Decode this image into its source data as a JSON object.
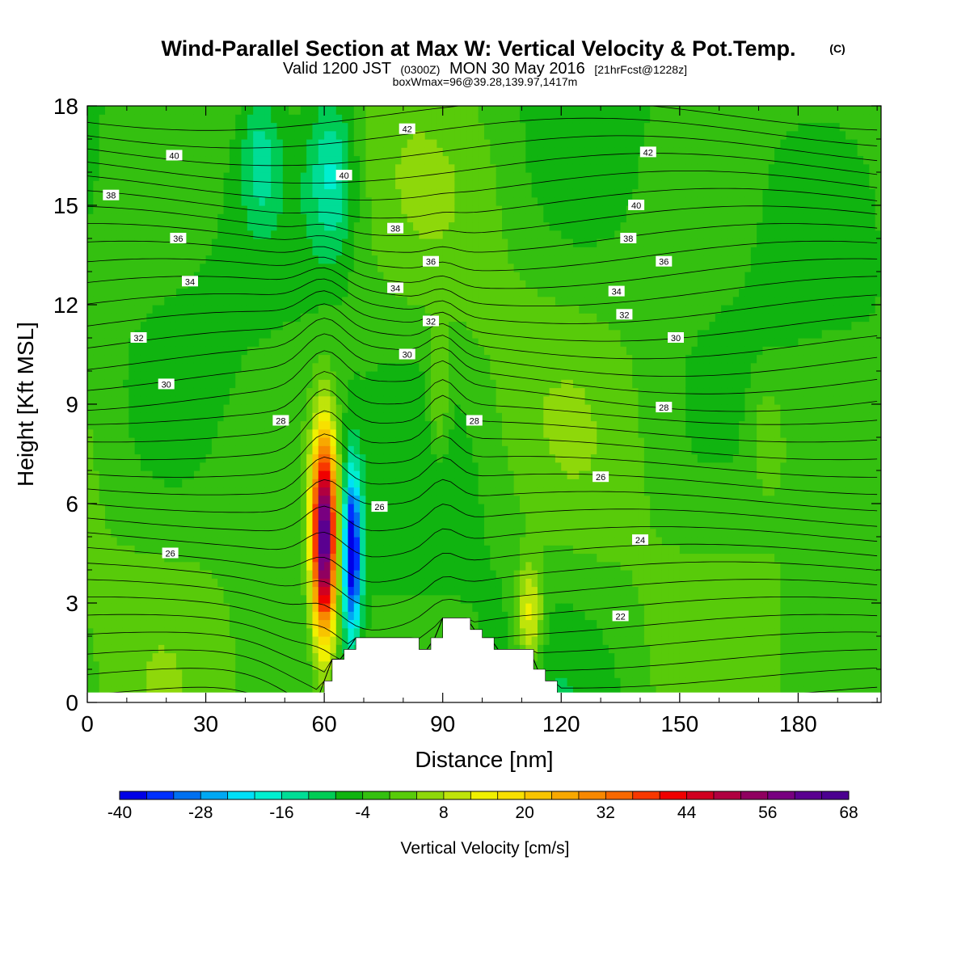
{
  "title": {
    "main": "Wind-Parallel Section at Max W: Vertical Velocity & Pot.Temp.",
    "copyright": "(C)",
    "valid_prefix": "Valid 1200 JST",
    "valid_utc": "(0300Z)",
    "valid_date": "MON 30 May 2016",
    "forecast": "[21hrFcst@1228z]",
    "box_wmax": "boxWmax=96@39.28,139.97,1417m"
  },
  "chart_data": {
    "type": "heatmap",
    "xlabel": "Distance [nm]",
    "ylabel": "Height [Kft MSL]",
    "xlim": [
      0,
      201
    ],
    "ylim": [
      0,
      18
    ],
    "xticks": [
      0,
      30,
      60,
      90,
      120,
      150,
      180
    ],
    "yticks": [
      0,
      3,
      6,
      9,
      12,
      15,
      18
    ],
    "colorbar": {
      "label": "Vertical Velocity [cm/s]",
      "tick_labels": [
        -40,
        -28,
        -16,
        -4,
        8,
        20,
        32,
        44,
        56,
        68
      ],
      "min": -40,
      "max": 68,
      "step": 4,
      "colors": [
        "#0000e6",
        "#0030ff",
        "#0070f0",
        "#00a8f2",
        "#00e0f7",
        "#00efd0",
        "#00dd96",
        "#00cc55",
        "#10b410",
        "#34c010",
        "#58cb0a",
        "#8ed80a",
        "#bfe40a",
        "#f0f000",
        "#f8e000",
        "#f8c400",
        "#f8a800",
        "#f88800",
        "#f86800",
        "#f83800",
        "#f00000",
        "#d00020",
        "#b00040",
        "#900060",
        "#780080",
        "#5a0090",
        "#4b0090"
      ]
    },
    "terrain": {
      "distance": [
        58,
        60,
        62,
        65,
        68,
        72,
        78,
        84,
        87,
        90,
        93,
        97,
        100,
        103,
        106,
        110,
        113,
        116,
        119
      ],
      "height": [
        0.0,
        0.65,
        1.3,
        1.6,
        1.95,
        1.95,
        1.95,
        1.6,
        1.95,
        2.55,
        2.55,
        2.2,
        1.95,
        1.6,
        1.6,
        1.6,
        1.0,
        0.65,
        0.35
      ]
    },
    "w_field": {
      "background_cm_s": -2,
      "features": [
        {
          "name": "updraft core",
          "x": 60,
          "y": 5.0,
          "amplitude": 68
        },
        {
          "name": "downdraft core",
          "x": 67,
          "y": 4.5,
          "amplitude": -38
        },
        {
          "name": "lee updraft",
          "x": 112,
          "y": 2.6,
          "amplitude": 18
        },
        {
          "name": "upper updraft",
          "x": 89,
          "y": 9.0,
          "amplitude": 9
        },
        {
          "name": "upper downdraft",
          "x": 62,
          "y": 16.0,
          "amplitude": -14
        },
        {
          "name": "upper downdraft",
          "x": 44,
          "y": 16.5,
          "amplitude": -10
        },
        {
          "name": "far field updraft",
          "x": 172,
          "y": 8.2,
          "amplitude": 6
        }
      ]
    },
    "theta_labels": [
      {
        "text": "42",
        "x": 81,
        "y": 17.3
      },
      {
        "text": "42",
        "x": 142,
        "y": 16.6
      },
      {
        "text": "40",
        "x": 22,
        "y": 16.5
      },
      {
        "text": "40",
        "x": 65,
        "y": 15.9
      },
      {
        "text": "40",
        "x": 139,
        "y": 15.0
      },
      {
        "text": "38",
        "x": 6,
        "y": 15.3
      },
      {
        "text": "38",
        "x": 78,
        "y": 14.3
      },
      {
        "text": "38",
        "x": 137,
        "y": 14.0
      },
      {
        "text": "36",
        "x": 23,
        "y": 14.0
      },
      {
        "text": "36",
        "x": 87,
        "y": 13.3
      },
      {
        "text": "36",
        "x": 146,
        "y": 13.3
      },
      {
        "text": "34",
        "x": 26,
        "y": 12.7
      },
      {
        "text": "34",
        "x": 78,
        "y": 12.5
      },
      {
        "text": "34",
        "x": 134,
        "y": 12.4
      },
      {
        "text": "32",
        "x": 13,
        "y": 11.0
      },
      {
        "text": "32",
        "x": 87,
        "y": 11.5
      },
      {
        "text": "32",
        "x": 136,
        "y": 11.7
      },
      {
        "text": "30",
        "x": 20,
        "y": 9.6
      },
      {
        "text": "30",
        "x": 81,
        "y": 10.5
      },
      {
        "text": "30",
        "x": 149,
        "y": 11.0
      },
      {
        "text": "28",
        "x": 49,
        "y": 8.5
      },
      {
        "text": "28",
        "x": 98,
        "y": 8.5
      },
      {
        "text": "28",
        "x": 146,
        "y": 8.9
      },
      {
        "text": "26",
        "x": 74,
        "y": 5.9
      },
      {
        "text": "26",
        "x": 130,
        "y": 6.8
      },
      {
        "text": "26",
        "x": 21,
        "y": 4.5
      },
      {
        "text": "24",
        "x": 140,
        "y": 4.9
      },
      {
        "text": "22",
        "x": 135,
        "y": 2.6
      }
    ]
  }
}
